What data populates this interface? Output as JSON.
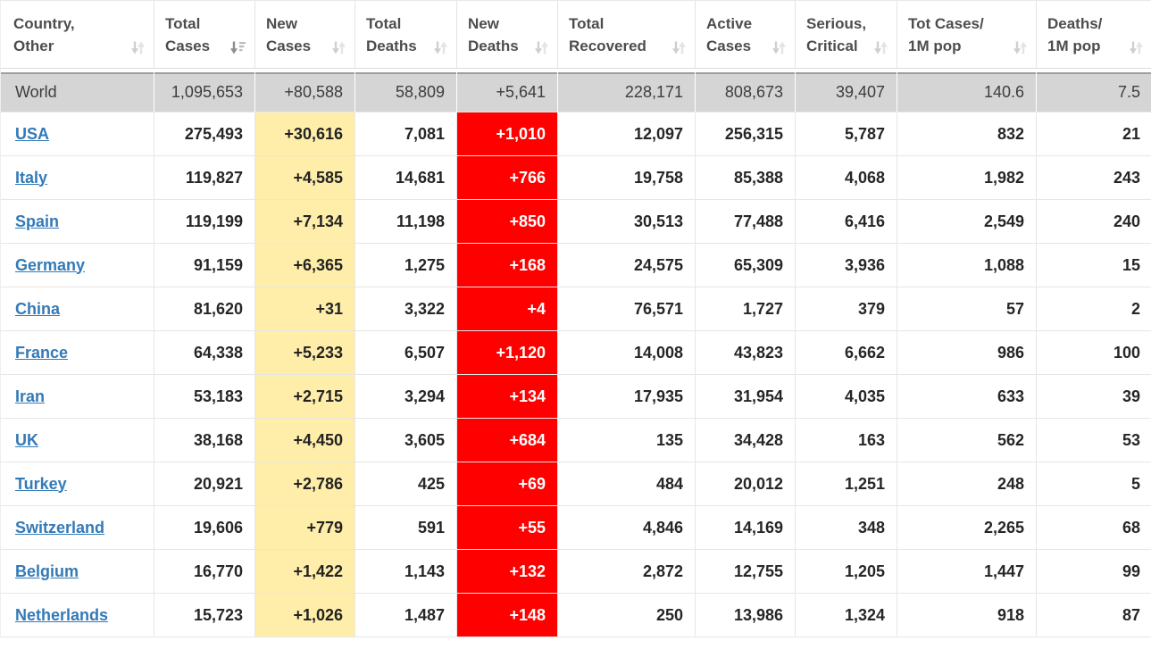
{
  "table": {
    "columns": [
      {
        "key": "country",
        "line1": "Country,",
        "line2": "Other",
        "icon": "sort-both-icon"
      },
      {
        "key": "total_cases",
        "line1": "Total",
        "line2": "Cases",
        "icon": "sort-desc-active-icon"
      },
      {
        "key": "new_cases",
        "line1": "New",
        "line2": "Cases",
        "icon": "sort-both-icon"
      },
      {
        "key": "total_deaths",
        "line1": "Total",
        "line2": "Deaths",
        "icon": "sort-both-icon"
      },
      {
        "key": "new_deaths",
        "line1": "New",
        "line2": "Deaths",
        "icon": "sort-both-icon"
      },
      {
        "key": "total_recovered",
        "line1": "Total",
        "line2": "Recovered",
        "icon": "sort-both-icon"
      },
      {
        "key": "active_cases",
        "line1": "Active",
        "line2": "Cases",
        "icon": "sort-both-icon"
      },
      {
        "key": "serious_critical",
        "line1": "Serious,",
        "line2": "Critical",
        "icon": "sort-both-icon"
      },
      {
        "key": "tot_cases_1m",
        "line1": "Tot Cases/",
        "line2": "1M pop",
        "icon": "sort-both-icon"
      },
      {
        "key": "deaths_1m",
        "line1": "Deaths/",
        "line2": "1M pop",
        "icon": "sort-both-icon"
      }
    ],
    "world": {
      "country": "World",
      "total_cases": "1,095,653",
      "new_cases": "+80,588",
      "total_deaths": "58,809",
      "new_deaths": "+5,641",
      "total_recovered": "228,171",
      "active_cases": "808,673",
      "serious_critical": "39,407",
      "tot_cases_1m": "140.6",
      "deaths_1m": "7.5"
    },
    "rows": [
      {
        "country": "USA",
        "total_cases": "275,493",
        "new_cases": "+30,616",
        "total_deaths": "7,081",
        "new_deaths": "+1,010",
        "total_recovered": "12,097",
        "active_cases": "256,315",
        "serious_critical": "5,787",
        "tot_cases_1m": "832",
        "deaths_1m": "21"
      },
      {
        "country": "Italy",
        "total_cases": "119,827",
        "new_cases": "+4,585",
        "total_deaths": "14,681",
        "new_deaths": "+766",
        "total_recovered": "19,758",
        "active_cases": "85,388",
        "serious_critical": "4,068",
        "tot_cases_1m": "1,982",
        "deaths_1m": "243"
      },
      {
        "country": "Spain",
        "total_cases": "119,199",
        "new_cases": "+7,134",
        "total_deaths": "11,198",
        "new_deaths": "+850",
        "total_recovered": "30,513",
        "active_cases": "77,488",
        "serious_critical": "6,416",
        "tot_cases_1m": "2,549",
        "deaths_1m": "240"
      },
      {
        "country": "Germany",
        "total_cases": "91,159",
        "new_cases": "+6,365",
        "total_deaths": "1,275",
        "new_deaths": "+168",
        "total_recovered": "24,575",
        "active_cases": "65,309",
        "serious_critical": "3,936",
        "tot_cases_1m": "1,088",
        "deaths_1m": "15"
      },
      {
        "country": "China",
        "total_cases": "81,620",
        "new_cases": "+31",
        "total_deaths": "3,322",
        "new_deaths": "+4",
        "total_recovered": "76,571",
        "active_cases": "1,727",
        "serious_critical": "379",
        "tot_cases_1m": "57",
        "deaths_1m": "2"
      },
      {
        "country": "France",
        "total_cases": "64,338",
        "new_cases": "+5,233",
        "total_deaths": "6,507",
        "new_deaths": "+1,120",
        "total_recovered": "14,008",
        "active_cases": "43,823",
        "serious_critical": "6,662",
        "tot_cases_1m": "986",
        "deaths_1m": "100"
      },
      {
        "country": "Iran",
        "total_cases": "53,183",
        "new_cases": "+2,715",
        "total_deaths": "3,294",
        "new_deaths": "+134",
        "total_recovered": "17,935",
        "active_cases": "31,954",
        "serious_critical": "4,035",
        "tot_cases_1m": "633",
        "deaths_1m": "39"
      },
      {
        "country": "UK",
        "total_cases": "38,168",
        "new_cases": "+4,450",
        "total_deaths": "3,605",
        "new_deaths": "+684",
        "total_recovered": "135",
        "active_cases": "34,428",
        "serious_critical": "163",
        "tot_cases_1m": "562",
        "deaths_1m": "53"
      },
      {
        "country": "Turkey",
        "total_cases": "20,921",
        "new_cases": "+2,786",
        "total_deaths": "425",
        "new_deaths": "+69",
        "total_recovered": "484",
        "active_cases": "20,012",
        "serious_critical": "1,251",
        "tot_cases_1m": "248",
        "deaths_1m": "5"
      },
      {
        "country": "Switzerland",
        "total_cases": "19,606",
        "new_cases": "+779",
        "total_deaths": "591",
        "new_deaths": "+55",
        "total_recovered": "4,846",
        "active_cases": "14,169",
        "serious_critical": "348",
        "tot_cases_1m": "2,265",
        "deaths_1m": "68"
      },
      {
        "country": "Belgium",
        "total_cases": "16,770",
        "new_cases": "+1,422",
        "total_deaths": "1,143",
        "new_deaths": "+132",
        "total_recovered": "2,872",
        "active_cases": "12,755",
        "serious_critical": "1,205",
        "tot_cases_1m": "1,447",
        "deaths_1m": "99"
      },
      {
        "country": "Netherlands",
        "total_cases": "15,723",
        "new_cases": "+1,026",
        "total_deaths": "1,487",
        "new_deaths": "+148",
        "total_recovered": "250",
        "active_cases": "13,986",
        "serious_critical": "1,324",
        "tot_cases_1m": "918",
        "deaths_1m": "87"
      }
    ]
  },
  "colors": {
    "new_cases_highlight": "#FFEEAA",
    "new_deaths_highlight": "#FF0000",
    "new_deaths_text": "#FFFFFF",
    "country_link": "#337AB7",
    "world_row_background": "#D5D5D5"
  }
}
